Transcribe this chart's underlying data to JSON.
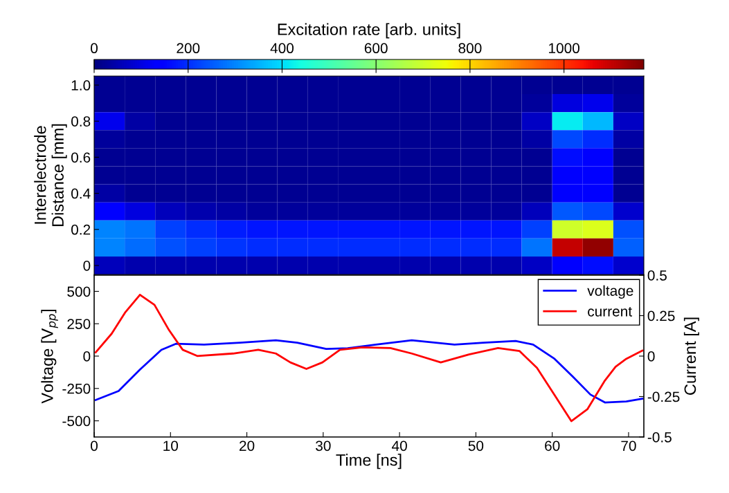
{
  "chart_data": [
    {
      "type": "heatmap",
      "clabel": "Excitation rate [arb. units]",
      "ylabel": "Interelectrode\nDistance [mm]",
      "categories": [
        null,
        null,
        null,
        null,
        null,
        null,
        null,
        null,
        null,
        null,
        null,
        null,
        null,
        null,
        null,
        null,
        null,
        null
      ],
      "y_categories": [
        "1.0",
        null,
        "0.8",
        null,
        "0.6",
        null,
        "0.4",
        null,
        "0.2",
        null,
        "0"
      ],
      "cells": [
        [
          20,
          20,
          20,
          20,
          20,
          20,
          20,
          20,
          20,
          20,
          20,
          20,
          20,
          20,
          20,
          20,
          20,
          20
        ],
        [
          20,
          20,
          20,
          20,
          20,
          20,
          20,
          20,
          20,
          20,
          20,
          20,
          20,
          20,
          30,
          100,
          110,
          30
        ],
        [
          110,
          40,
          20,
          20,
          20,
          20,
          20,
          20,
          20,
          20,
          20,
          20,
          20,
          20,
          70,
          420,
          360,
          70
        ],
        [
          30,
          20,
          20,
          20,
          20,
          20,
          20,
          20,
          20,
          20,
          20,
          20,
          20,
          20,
          40,
          230,
          200,
          40
        ],
        [
          20,
          20,
          20,
          20,
          20,
          20,
          20,
          20,
          20,
          20,
          20,
          20,
          20,
          20,
          20,
          160,
          140,
          20
        ],
        [
          20,
          20,
          20,
          20,
          20,
          20,
          20,
          20,
          20,
          20,
          20,
          20,
          20,
          20,
          20,
          140,
          130,
          20
        ],
        [
          40,
          20,
          20,
          20,
          20,
          20,
          20,
          20,
          20,
          20,
          20,
          20,
          20,
          20,
          20,
          150,
          140,
          20
        ],
        [
          130,
          100,
          60,
          50,
          40,
          30,
          30,
          30,
          30,
          30,
          30,
          30,
          30,
          30,
          60,
          250,
          230,
          80
        ],
        [
          300,
          280,
          220,
          200,
          180,
          170,
          170,
          170,
          170,
          170,
          170,
          170,
          170,
          170,
          220,
          700,
          720,
          240
        ],
        [
          300,
          270,
          240,
          220,
          210,
          200,
          200,
          200,
          200,
          200,
          200,
          200,
          200,
          200,
          280,
          1100,
          1150,
          260
        ],
        [
          60,
          50,
          50,
          50,
          50,
          50,
          50,
          50,
          50,
          50,
          50,
          50,
          50,
          50,
          70,
          150,
          160,
          80
        ]
      ],
      "clim": [
        0,
        1170
      ],
      "cticks": [
        0,
        200,
        400,
        600,
        800,
        1000
      ],
      "tick_labels": "y"
    },
    {
      "type": "line",
      "xlabel": "Time [ns]",
      "ylabel": "Voltage [V$_{pp}$]",
      "y2label": "Current [A]",
      "series": [
        {
          "name": "voltage",
          "color": "#0000ff",
          "x": [
            0.2,
            3.2,
            6.0,
            8.8,
            10.7,
            14.4,
            19.1,
            23.8,
            26.6,
            30.4,
            33.2,
            36.9,
            41.6,
            47.2,
            51,
            55.2,
            57.5,
            60.3,
            62.7,
            65,
            66.9,
            69.7,
            71.8
          ],
          "values": [
            -339,
            -270,
            -104,
            48,
            95,
            89,
            103,
            122,
            103,
            56,
            61,
            89,
            122,
            89,
            103,
            117,
            89,
            -21,
            -159,
            -297,
            -358,
            -350,
            -329
          ]
        },
        {
          "name": "current",
          "color": "#ff0000",
          "axis": "y2",
          "x": [
            0.2,
            2.3,
            4.1,
            6.0,
            7.9,
            9.8,
            11.6,
            13.5,
            18.2,
            21.5,
            23.8,
            25.7,
            27.8,
            29.9,
            32.2,
            35.1,
            38.8,
            41.6,
            45.4,
            49.1,
            52.9,
            55.7,
            58,
            60.3,
            62.5,
            64.6,
            66.9,
            68.3,
            69.7,
            71.8
          ],
          "values": [
            0.023,
            0.139,
            0.272,
            0.379,
            0.317,
            0.161,
            0.039,
            0.001,
            0.016,
            0.039,
            0.016,
            -0.039,
            -0.079,
            -0.039,
            0.039,
            0.054,
            0.05,
            0.016,
            -0.039,
            0.01,
            0.05,
            0.032,
            -0.073,
            -0.24,
            -0.402,
            -0.329,
            -0.151,
            -0.066,
            -0.017,
            0.034
          ]
        }
      ],
      "xlim": [
        0,
        72
      ],
      "xticks": [
        0,
        10,
        20,
        30,
        40,
        50,
        60,
        70
      ],
      "ylim": [
        -625,
        625
      ],
      "yticks": [
        -500,
        -250,
        0,
        250,
        500
      ],
      "y2lim": [
        -0.5,
        0.5
      ],
      "y2ticks": [
        -0.5,
        -0.25,
        0,
        0.25,
        0.5
      ],
      "legend": "top right",
      "line_style": "solid",
      "marker": "none"
    }
  ]
}
